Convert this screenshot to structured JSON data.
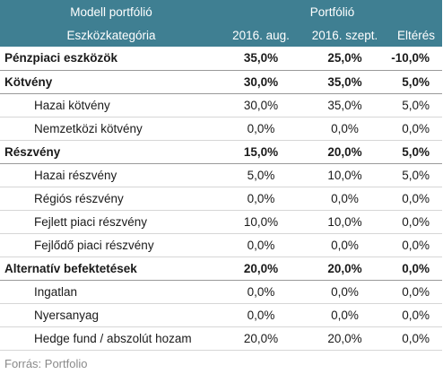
{
  "header": {
    "model_portfolio": "Modell portfólió",
    "portfolio": "Portfólió",
    "asset_class": "Eszközkategória",
    "col_aug": "2016. aug.",
    "col_sept": "2016. szept.",
    "col_diff": "Eltérés"
  },
  "rows": [
    {
      "label": "Pénzpiaci eszközök",
      "aug": "35,0%",
      "sept": "25,0%",
      "diff": "-10,0%"
    },
    {
      "label": "Kötvény",
      "aug": "30,0%",
      "sept": "35,0%",
      "diff": "5,0%"
    },
    {
      "label": "Hazai kötvény",
      "aug": "30,0%",
      "sept": "35,0%",
      "diff": "5,0%"
    },
    {
      "label": "Nemzetközi kötvény",
      "aug": "0,0%",
      "sept": "0,0%",
      "diff": "0,0%"
    },
    {
      "label": "Részvény",
      "aug": "15,0%",
      "sept": "20,0%",
      "diff": "5,0%"
    },
    {
      "label": "Hazai részvény",
      "aug": "5,0%",
      "sept": "10,0%",
      "diff": "5,0%"
    },
    {
      "label": "Régiós részvény",
      "aug": "0,0%",
      "sept": "0,0%",
      "diff": "0,0%"
    },
    {
      "label": "Fejlett piaci részvény",
      "aug": "10,0%",
      "sept": "10,0%",
      "diff": "0,0%"
    },
    {
      "label": "Fejlődő piaci részvény",
      "aug": "0,0%",
      "sept": "0,0%",
      "diff": "0,0%"
    },
    {
      "label": "Alternatív befektetések",
      "aug": "20,0%",
      "sept": "20,0%",
      "diff": "0,0%"
    },
    {
      "label": "Ingatlan",
      "aug": "0,0%",
      "sept": "0,0%",
      "diff": "0,0%"
    },
    {
      "label": "Nyersanyag",
      "aug": "0,0%",
      "sept": "0,0%",
      "diff": "0,0%"
    },
    {
      "label": "Hedge fund / abszolút hozam",
      "aug": "20,0%",
      "sept": "20,0%",
      "diff": "0,0%"
    }
  ],
  "source": "Forrás: Portfolio",
  "colors": {
    "header_bg": "#3f7f92",
    "header_text": "#ffffff",
    "source_text": "#8a8a8a"
  }
}
